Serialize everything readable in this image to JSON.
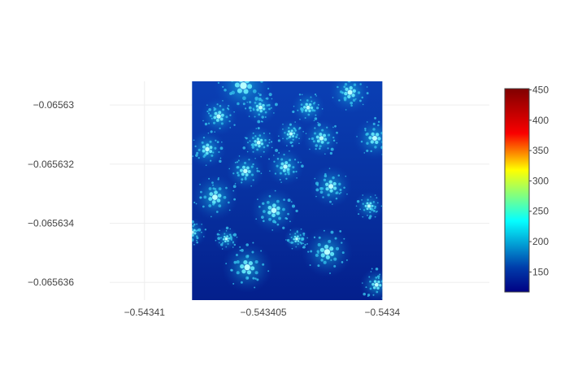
{
  "chart_data": {
    "type": "heatmap",
    "title": "",
    "xlabel": "",
    "ylabel": "",
    "x_ticks": [
      {
        "value": -0.54341,
        "label": "−0.54341"
      },
      {
        "value": -0.543405,
        "label": "−0.543405"
      },
      {
        "value": -0.5434,
        "label": "−0.5434"
      }
    ],
    "y_ticks": [
      {
        "value": -0.06563,
        "label": "−0.06563"
      },
      {
        "value": -0.065632,
        "label": "−0.065632"
      },
      {
        "value": -0.065634,
        "label": "−0.065634"
      },
      {
        "value": -0.065636,
        "label": "−0.065636"
      }
    ],
    "xlim": [
      -0.543413,
      -0.5433955
    ],
    "ylim": [
      -0.0656366,
      -0.0656292
    ],
    "data_extent": {
      "x": [
        -0.543408,
        -0.5434
      ],
      "y": [
        -0.0656366,
        -0.0656292
      ]
    },
    "grid": true,
    "colorscale": "jet",
    "colorbar": {
      "min": 117,
      "max": 452,
      "ticks": [
        {
          "value": 150,
          "label": "150"
        },
        {
          "value": 200,
          "label": "200"
        },
        {
          "value": 250,
          "label": "250"
        },
        {
          "value": 300,
          "label": "300"
        },
        {
          "value": 350,
          "label": "350"
        },
        {
          "value": 400,
          "label": "400"
        },
        {
          "value": 450,
          "label": "450"
        }
      ]
    }
  }
}
